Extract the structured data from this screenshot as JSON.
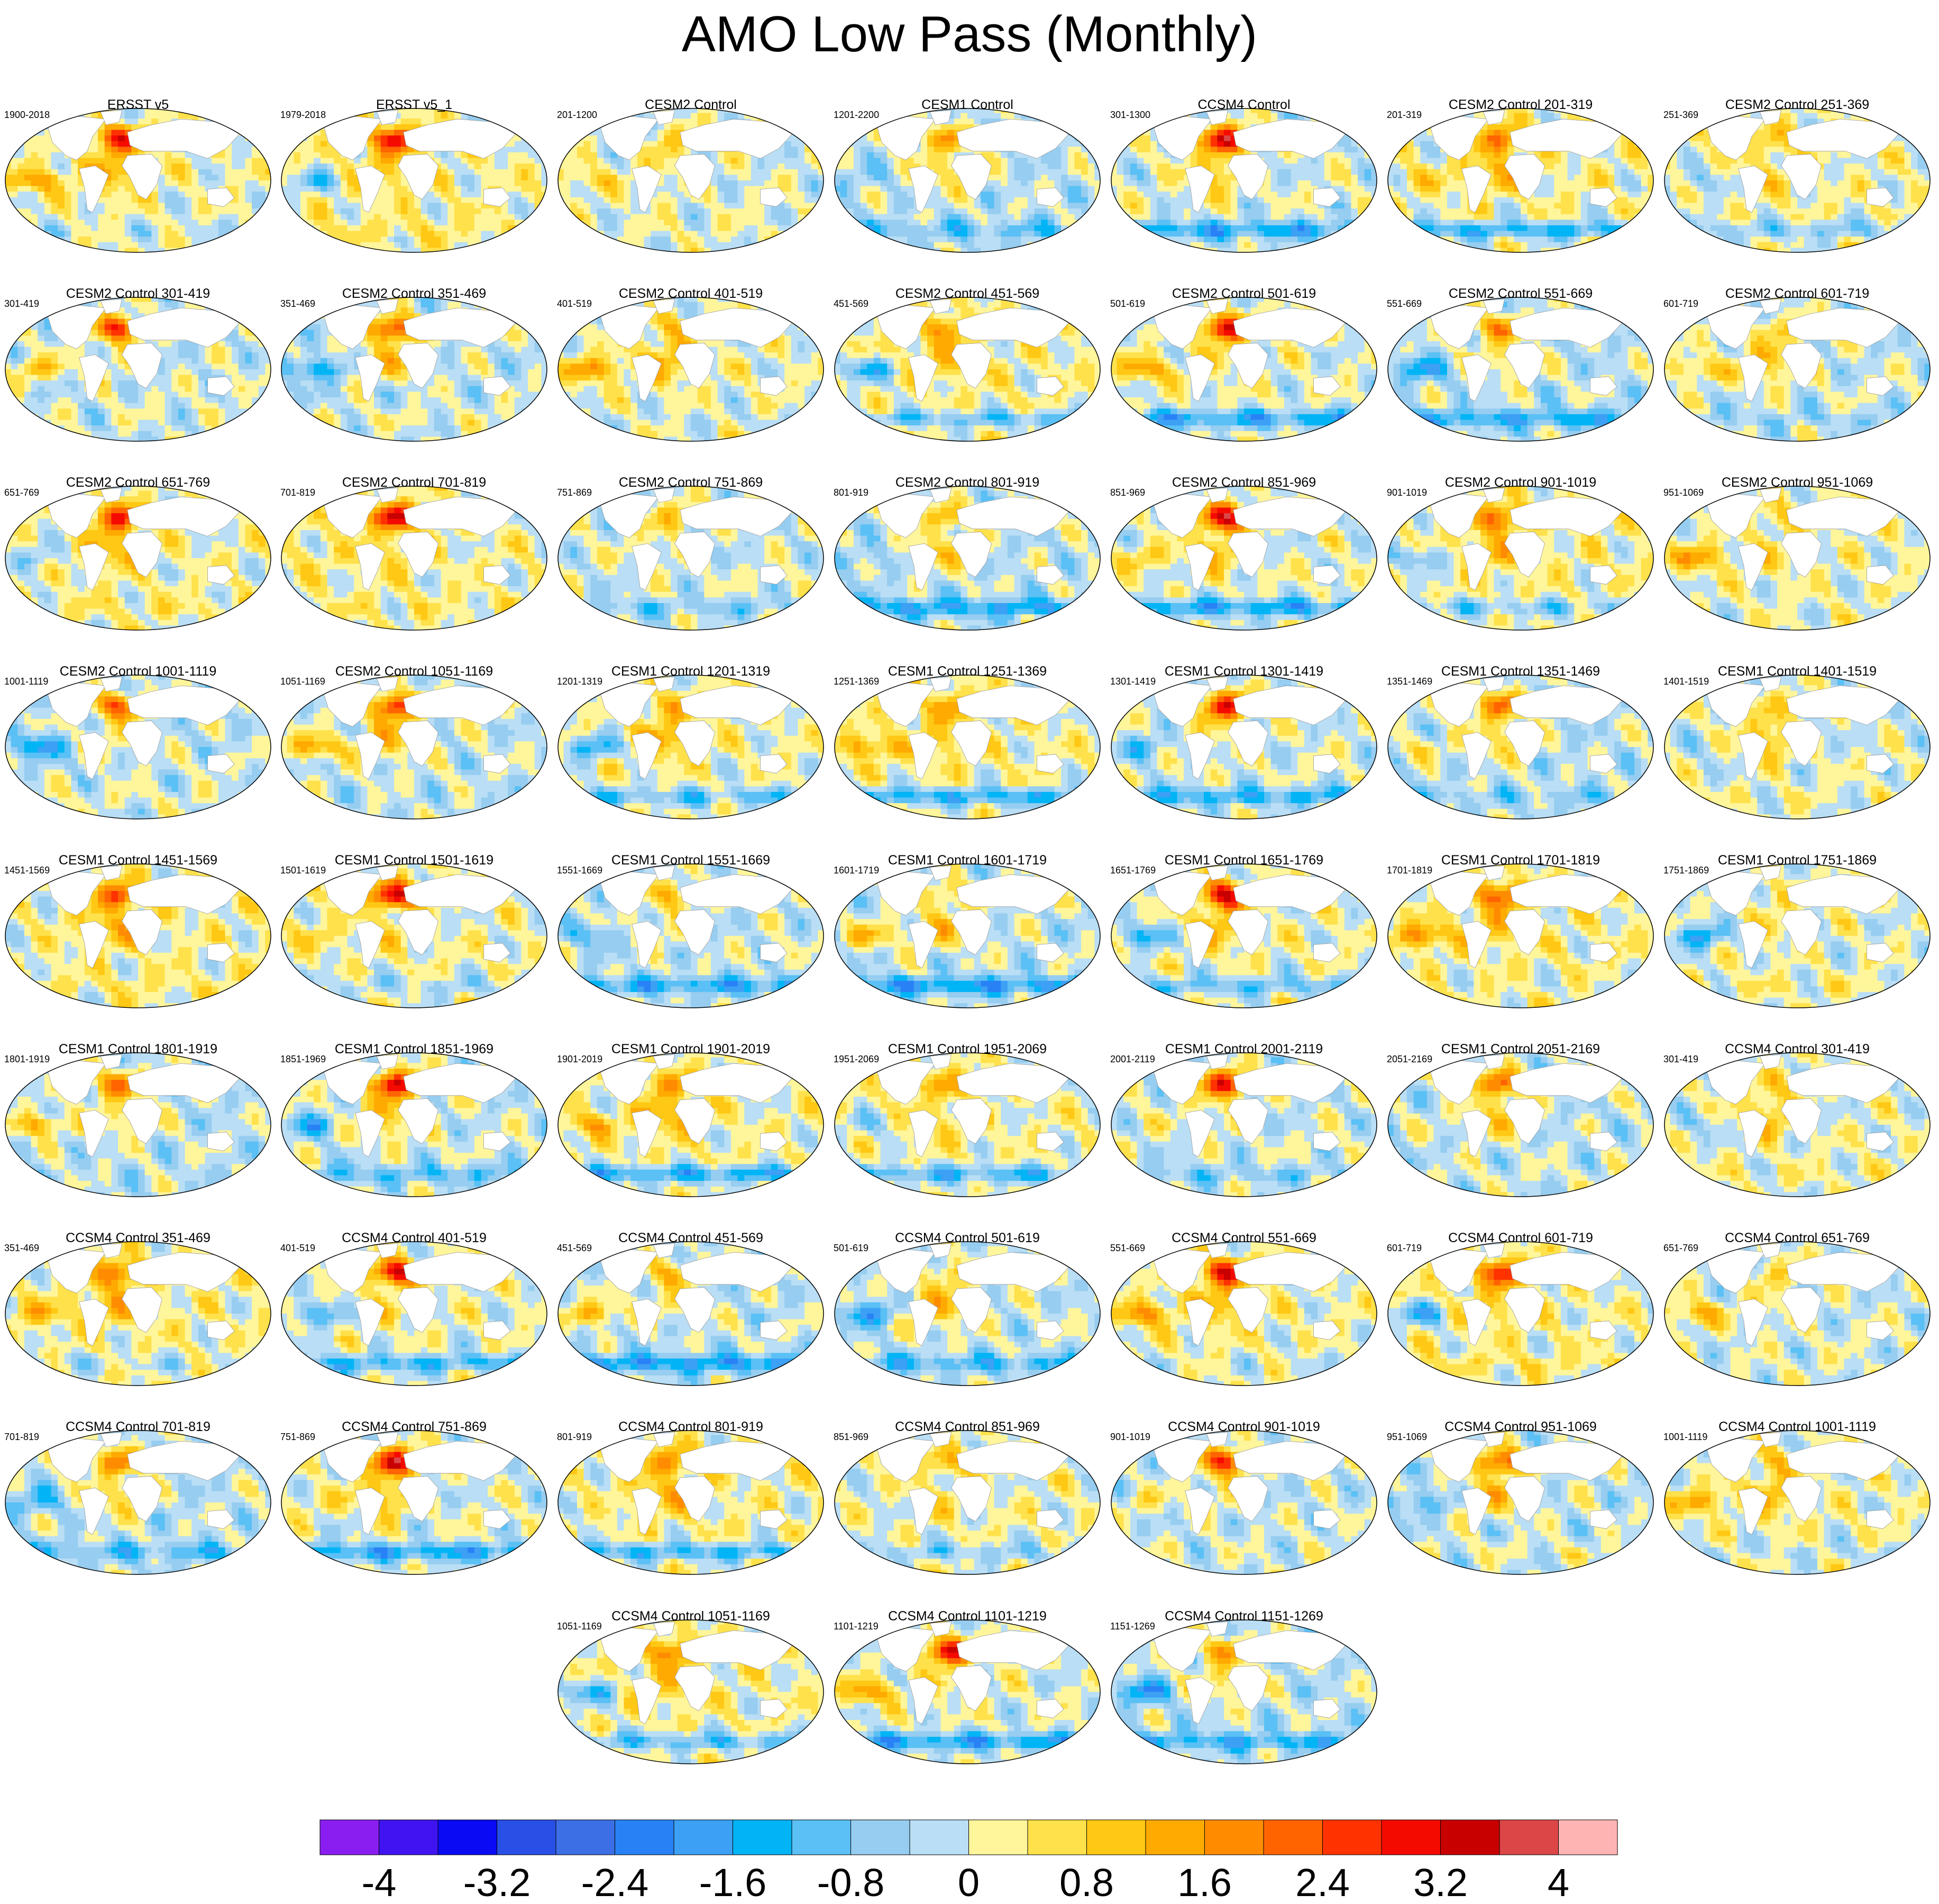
{
  "title": "AMO Low Pass (Monthly)",
  "panels": [
    {
      "title": "ERSST v5",
      "years": "1900-2018"
    },
    {
      "title": "ERSST v5_1",
      "years": "1979-2018"
    },
    {
      "title": "CESM2 Control",
      "years": "201-1200"
    },
    {
      "title": "CESM1 Control",
      "years": "1201-2200"
    },
    {
      "title": "CCSM4 Control",
      "years": "301-1300"
    },
    {
      "title": "CESM2 Control 201-319",
      "years": "201-319"
    },
    {
      "title": "CESM2 Control 251-369",
      "years": "251-369"
    },
    {
      "title": "CESM2 Control 301-419",
      "years": "301-419"
    },
    {
      "title": "CESM2 Control 351-469",
      "years": "351-469"
    },
    {
      "title": "CESM2 Control 401-519",
      "years": "401-519"
    },
    {
      "title": "CESM2 Control 451-569",
      "years": "451-569"
    },
    {
      "title": "CESM2 Control 501-619",
      "years": "501-619"
    },
    {
      "title": "CESM2 Control 551-669",
      "years": "551-669"
    },
    {
      "title": "CESM2 Control 601-719",
      "years": "601-719"
    },
    {
      "title": "CESM2 Control 651-769",
      "years": "651-769"
    },
    {
      "title": "CESM2 Control 701-819",
      "years": "701-819"
    },
    {
      "title": "CESM2 Control 751-869",
      "years": "751-869"
    },
    {
      "title": "CESM2 Control 801-919",
      "years": "801-919"
    },
    {
      "title": "CESM2 Control 851-969",
      "years": "851-969"
    },
    {
      "title": "CESM2 Control 901-1019",
      "years": "901-1019"
    },
    {
      "title": "CESM2 Control 951-1069",
      "years": "951-1069"
    },
    {
      "title": "CESM2 Control 1001-1119",
      "years": "1001-1119"
    },
    {
      "title": "CESM2 Control 1051-1169",
      "years": "1051-1169"
    },
    {
      "title": "CESM1 Control 1201-1319",
      "years": "1201-1319"
    },
    {
      "title": "CESM1 Control 1251-1369",
      "years": "1251-1369"
    },
    {
      "title": "CESM1 Control 1301-1419",
      "years": "1301-1419"
    },
    {
      "title": "CESM1 Control 1351-1469",
      "years": "1351-1469"
    },
    {
      "title": "CESM1 Control 1401-1519",
      "years": "1401-1519"
    },
    {
      "title": "CESM1 Control 1451-1569",
      "years": "1451-1569"
    },
    {
      "title": "CESM1 Control 1501-1619",
      "years": "1501-1619"
    },
    {
      "title": "CESM1 Control 1551-1669",
      "years": "1551-1669"
    },
    {
      "title": "CESM1 Control 1601-1719",
      "years": "1601-1719"
    },
    {
      "title": "CESM1 Control 1651-1769",
      "years": "1651-1769"
    },
    {
      "title": "CESM1 Control 1701-1819",
      "years": "1701-1819"
    },
    {
      "title": "CESM1 Control 1751-1869",
      "years": "1751-1869"
    },
    {
      "title": "CESM1 Control 1801-1919",
      "years": "1801-1919"
    },
    {
      "title": "CESM1 Control 1851-1969",
      "years": "1851-1969"
    },
    {
      "title": "CESM1 Control 1901-2019",
      "years": "1901-2019"
    },
    {
      "title": "CESM1 Control 1951-2069",
      "years": "1951-2069"
    },
    {
      "title": "CESM1 Control 2001-2119",
      "years": "2001-2119"
    },
    {
      "title": "CESM1 Control 2051-2169",
      "years": "2051-2169"
    },
    {
      "title": "CCSM4 Control 301-419",
      "years": "301-419"
    },
    {
      "title": "CCSM4 Control 351-469",
      "years": "351-469"
    },
    {
      "title": "CCSM4 Control 401-519",
      "years": "401-519"
    },
    {
      "title": "CCSM4 Control 451-569",
      "years": "451-569"
    },
    {
      "title": "CCSM4 Control 501-619",
      "years": "501-619"
    },
    {
      "title": "CCSM4 Control 551-669",
      "years": "551-669"
    },
    {
      "title": "CCSM4 Control 601-719",
      "years": "601-719"
    },
    {
      "title": "CCSM4 Control 651-769",
      "years": "651-769"
    },
    {
      "title": "CCSM4 Control 701-819",
      "years": "701-819"
    },
    {
      "title": "CCSM4 Control 751-869",
      "years": "751-869"
    },
    {
      "title": "CCSM4 Control 801-919",
      "years": "801-919"
    },
    {
      "title": "CCSM4 Control 851-969",
      "years": "851-969"
    },
    {
      "title": "CCSM4 Control 901-1019",
      "years": "901-1019"
    },
    {
      "title": "CCSM4 Control 951-1069",
      "years": "951-1069"
    },
    {
      "title": "CCSM4 Control 1001-1119",
      "years": "1001-1119"
    },
    {
      "title": "CCSM4 Control 1051-1169",
      "years": "1051-1169"
    },
    {
      "title": "CCSM4 Control 1101-1219",
      "years": "1101-1219"
    },
    {
      "title": "CCSM4 Control 1151-1269",
      "years": "1151-1269"
    }
  ],
  "chart_data": {
    "type": "heatmap",
    "title": "AMO Low Pass (Monthly)",
    "panel_count": 59,
    "colorbar": {
      "min": -4.4,
      "max": 4.4,
      "step": 0.4,
      "tick_labels": [
        "-4",
        "-3.2",
        "-2.4",
        "-1.6",
        "-0.8",
        "0",
        "0.8",
        "1.6",
        "2.4",
        "3.2",
        "4"
      ],
      "tick_values": [
        -4,
        -3.2,
        -2.4,
        -1.6,
        -0.8,
        0,
        0.8,
        1.6,
        2.4,
        3.2,
        4
      ],
      "colors": [
        "#8a1ef0",
        "#4014f0",
        "#0a0af5",
        "#2850e6",
        "#3c6ee6",
        "#2882f5",
        "#3ca0f5",
        "#00b4f5",
        "#5ac0f5",
        "#96cdf0",
        "#b9def5",
        "#fff59b",
        "#ffe14b",
        "#ffc814",
        "#ffaa00",
        "#ff8c00",
        "#ff6400",
        "#ff3200",
        "#f50a00",
        "#c80000",
        "#dc4646",
        "#ffb4b4"
      ]
    }
  }
}
